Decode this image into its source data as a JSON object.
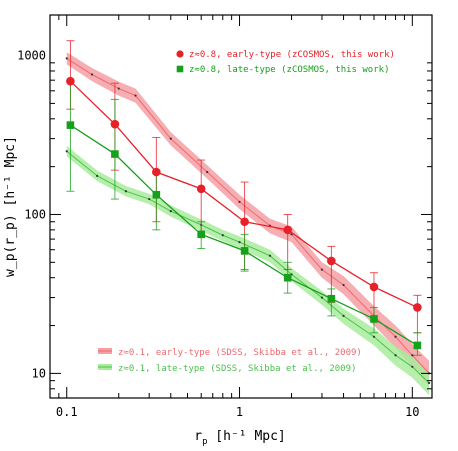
{
  "chart_data": {
    "type": "line",
    "xlabel_main": "r",
    "xlabel_sub": "p",
    "xlabel_units": "[h⁻¹ Mpc]",
    "ylabel": "w_p(r_p) [h⁻¹ Mpc]",
    "x_scale": "log",
    "y_scale": "log",
    "xlim": [
      0.08,
      13
    ],
    "ylim": [
      7,
      1800
    ],
    "x_ticks": [
      {
        "value": 0.1,
        "label": "0.1"
      },
      {
        "value": 1,
        "label": "1"
      },
      {
        "value": 10,
        "label": "10"
      }
    ],
    "y_ticks": [
      {
        "value": 10,
        "label": "10"
      },
      {
        "value": 100,
        "label": "100"
      },
      {
        "value": 1000,
        "label": "1000"
      }
    ],
    "legend_placement": "top-right and bottom-left",
    "colors": {
      "early": "#e8202a",
      "late": "#17a01a",
      "early_band": "#f5a0a5",
      "late_band": "#a8ec9c",
      "sdss_early_line": "#ee6a70",
      "sdss_late_line": "#4fc04f"
    },
    "series": [
      {
        "name": "z≈0.8, early-type (zCOSMOS, this work)",
        "kind": "points",
        "color": "#e8202a",
        "marker": "circle",
        "x": [
          0.105,
          0.19,
          0.33,
          0.6,
          1.07,
          1.9,
          3.4,
          6.0,
          10.7
        ],
        "y": [
          690,
          370,
          185,
          145,
          90,
          80,
          51,
          35,
          26
        ],
        "err_low": [
          230,
          180,
          95,
          70,
          45,
          35,
          23,
          12,
          8
        ],
        "err_high": [
          550,
          300,
          120,
          75,
          70,
          20,
          12,
          8,
          5
        ]
      },
      {
        "name": "z≈0.8, late-type (zCOSMOS, this work)",
        "kind": "points",
        "color": "#17a01a",
        "marker": "square",
        "x": [
          0.105,
          0.19,
          0.33,
          0.6,
          1.07,
          1.9,
          3.4,
          6.0,
          10.7
        ],
        "y": [
          365,
          240,
          133,
          75,
          59,
          40,
          29.5,
          22,
          15
        ],
        "err_low": [
          225,
          115,
          53,
          14,
          15,
          8,
          6.5,
          4,
          2
        ],
        "err_high": [
          325,
          290,
          47,
          15,
          16,
          10,
          4.5,
          4,
          3
        ]
      },
      {
        "name": "z≈0.1, early-type (SDSS, Skibba et al., 2009)",
        "kind": "band",
        "color": "#f5a0a5",
        "line_color": "#ee6a70",
        "x": [
          0.1,
          0.14,
          0.2,
          0.25,
          0.4,
          0.65,
          1.0,
          1.5,
          2.0,
          3.0,
          4.0,
          6.0,
          8.0,
          10.0,
          12.5
        ],
        "y": [
          960,
          760,
          620,
          560,
          300,
          185,
          120,
          85,
          75,
          45,
          36,
          23,
          17,
          13,
          10
        ],
        "band_low": [
          880,
          690,
          560,
          505,
          272,
          168,
          108,
          76,
          67,
          40,
          31.5,
          20,
          14.5,
          11,
          8.3
        ],
        "band_high": [
          1050,
          835,
          685,
          620,
          330,
          204,
          133,
          94,
          84,
          50,
          41,
          26.5,
          20,
          15.3,
          12
        ]
      },
      {
        "name": "z≈0.1, late-type (SDSS, Skibba et al., 2009)",
        "kind": "band",
        "color": "#a8ec9c",
        "line_color": "#4fc04f",
        "x": [
          0.1,
          0.15,
          0.22,
          0.3,
          0.4,
          0.6,
          0.8,
          1.0,
          1.5,
          2.0,
          3.0,
          4.0,
          6.0,
          8.0,
          10.0,
          12.5
        ],
        "y": [
          250,
          175,
          140,
          125,
          105,
          86,
          74,
          67,
          55,
          42,
          30,
          23,
          17,
          13,
          11,
          8.7
        ],
        "band_low": [
          232,
          162,
          130,
          116,
          97,
          79,
          68,
          61,
          50,
          38,
          27,
          20.5,
          15,
          11.2,
          9.4,
          7.3
        ],
        "band_high": [
          270,
          189,
          151,
          135,
          114,
          93,
          80,
          73,
          60,
          46,
          33,
          25.5,
          19.2,
          14.8,
          12.7,
          10.2
        ]
      }
    ]
  }
}
